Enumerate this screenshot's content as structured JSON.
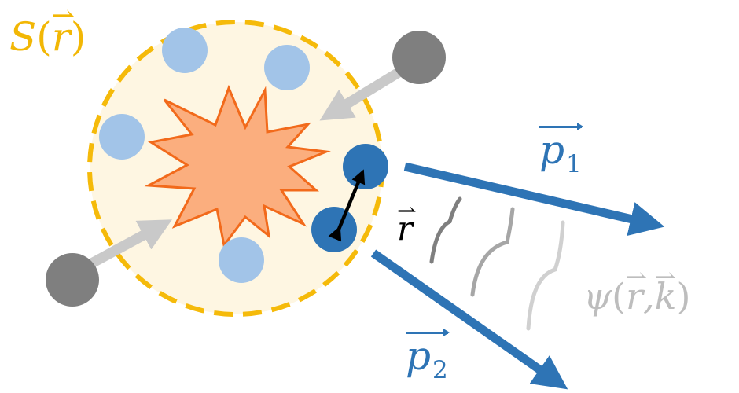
{
  "labels": {
    "source": "S",
    "source_arg": "r",
    "r_label": "r",
    "p1_base": "p",
    "p1_sub": "1",
    "p2_base": "p",
    "p2_sub": "2",
    "psi": "ψ",
    "psi_arg1": "r",
    "psi_arg2": "k",
    "comma": ","
  },
  "colors": {
    "source_label": "#F2B705",
    "source_fill": "#FEF6E2",
    "source_border": "#F5BA0A",
    "explosion_fill": "#FBAE7E",
    "explosion_stroke": "#F26A1B",
    "light_particle": "#A2C4E8",
    "dark_particle": "#2E74B5",
    "gray_particle": "#7F7F7F",
    "incoming_arrow": "#C9C9C9",
    "momentum_arrow": "#2E74B5",
    "psi_label": "#BDBDBD",
    "wave_1": "#7F7F7F",
    "wave_2": "#A6A6A6",
    "wave_3": "#D0D0D0"
  }
}
